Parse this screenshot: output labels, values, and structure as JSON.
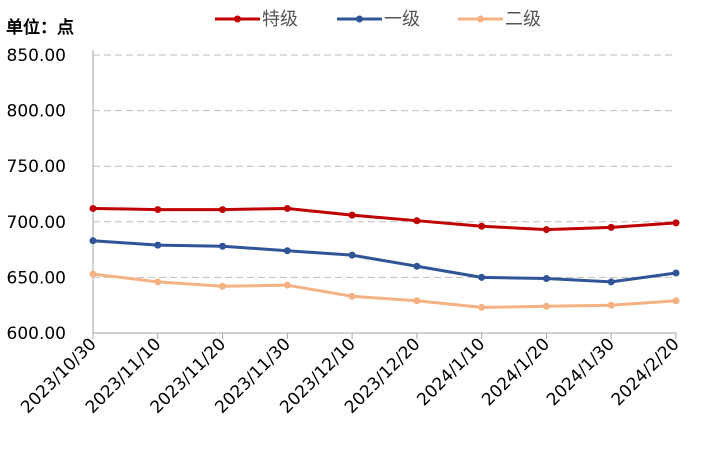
{
  "chart_data": {
    "type": "line",
    "unit_label": "单位：点",
    "categories": [
      "2023/10/30",
      "2023/11/10",
      "2023/11/20",
      "2023/11/30",
      "2023/12/10",
      "2023/12/20",
      "2024/1/10",
      "2024/1/20",
      "2024/1/30",
      "2024/2/20"
    ],
    "series": [
      {
        "name": "特级",
        "color": "#C00000",
        "values": [
          712,
          711,
          711,
          712,
          706,
          701,
          696,
          693,
          695,
          699
        ]
      },
      {
        "name": "一级",
        "color": "#2F5597",
        "values": [
          683,
          679,
          678,
          674,
          670,
          660,
          650,
          649,
          646,
          654
        ]
      },
      {
        "name": "二级",
        "color": "#F4B183",
        "values": [
          653,
          646,
          642,
          643,
          633,
          629,
          623,
          624,
          625,
          629
        ]
      }
    ],
    "ylim": [
      600,
      850
    ],
    "yticks": [
      "600.00",
      "650.00",
      "700.00",
      "750.00",
      "800.00",
      "850.00"
    ],
    "grid": true,
    "legend_position": "top"
  }
}
